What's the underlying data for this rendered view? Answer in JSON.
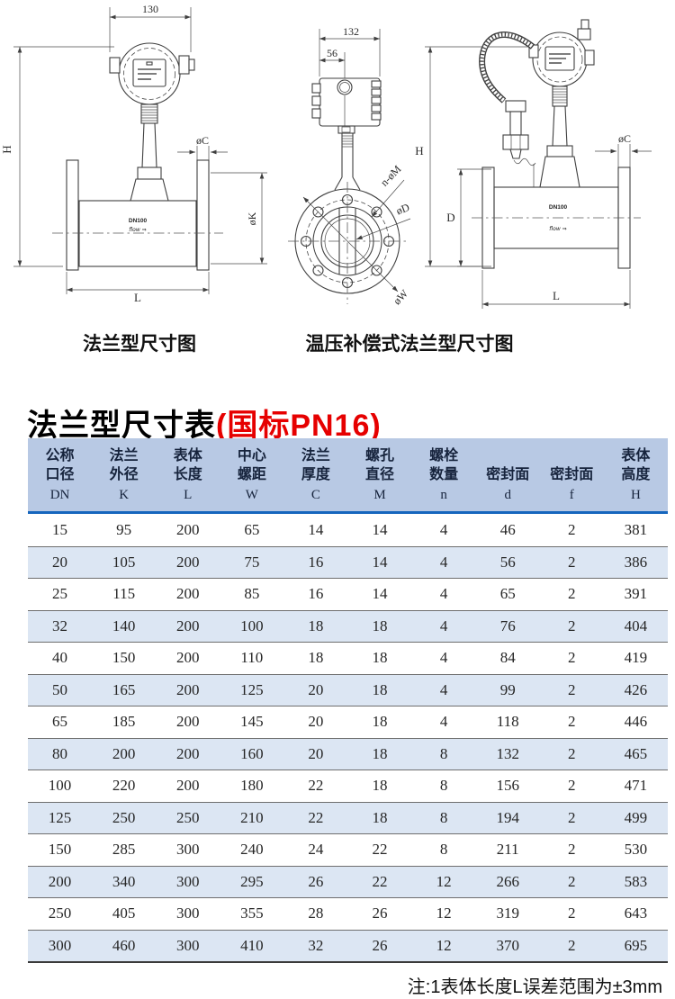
{
  "diagrams": {
    "left": {
      "caption": "法兰型尺寸图",
      "dim_width": "130",
      "dim_height": "H",
      "dim_flange_thickness": "øC",
      "dim_flange_od": "øK",
      "dim_length": "L",
      "body_label": "DN100",
      "flow_label": "flow ⇒"
    },
    "middle": {
      "dim_width": "132",
      "dim_half_width": "56",
      "dim_bolt_holes": "n-øM",
      "dim_bore_diameter": "øD",
      "dim_outer_diameter": "øW"
    },
    "right": {
      "caption": "温压补偿式法兰型尺寸图",
      "dim_height": "H",
      "dim_body_diameter": "D",
      "dim_flange_thickness": "øC",
      "dim_length": "L",
      "body_label": "DN100",
      "flow_label": "flow ⇒"
    }
  },
  "title": {
    "main": "法兰型尺寸表",
    "suffix": "(国标PN16)",
    "accent_color": "#e60000"
  },
  "table": {
    "header_bg": "#b8c9e4",
    "header_rule_color": "#1565bd",
    "stripe_color": "#dce6f3",
    "columns": [
      {
        "cn": "公称|口径",
        "sym": "DN"
      },
      {
        "cn": "法兰|外径",
        "sym": "K"
      },
      {
        "cn": "表体|长度",
        "sym": "L"
      },
      {
        "cn": "中心|螺距",
        "sym": "W"
      },
      {
        "cn": "法兰|厚度",
        "sym": "C"
      },
      {
        "cn": "螺孔|直径",
        "sym": "M"
      },
      {
        "cn": "螺栓|数量",
        "sym": "n"
      },
      {
        "cn": "密封面",
        "sym": "d"
      },
      {
        "cn": "密封面",
        "sym": "f"
      },
      {
        "cn": "表体|高度",
        "sym": "H"
      }
    ],
    "rows": [
      [
        15,
        95,
        200,
        65,
        14,
        14,
        4,
        46,
        2,
        381
      ],
      [
        20,
        105,
        200,
        75,
        16,
        14,
        4,
        56,
        2,
        386
      ],
      [
        25,
        115,
        200,
        85,
        16,
        14,
        4,
        65,
        2,
        391
      ],
      [
        32,
        140,
        200,
        100,
        18,
        18,
        4,
        76,
        2,
        404
      ],
      [
        40,
        150,
        200,
        110,
        18,
        18,
        4,
        84,
        2,
        419
      ],
      [
        50,
        165,
        200,
        125,
        20,
        18,
        4,
        99,
        2,
        426
      ],
      [
        65,
        185,
        200,
        145,
        20,
        18,
        4,
        118,
        2,
        446
      ],
      [
        80,
        200,
        200,
        160,
        20,
        18,
        8,
        132,
        2,
        465
      ],
      [
        100,
        220,
        200,
        180,
        22,
        18,
        8,
        156,
        2,
        471
      ],
      [
        125,
        250,
        250,
        210,
        22,
        18,
        8,
        194,
        2,
        499
      ],
      [
        150,
        285,
        300,
        240,
        24,
        22,
        8,
        211,
        2,
        530
      ],
      [
        200,
        340,
        300,
        295,
        26,
        22,
        12,
        266,
        2,
        583
      ],
      [
        250,
        405,
        300,
        355,
        28,
        26,
        12,
        319,
        2,
        643
      ],
      [
        300,
        460,
        300,
        410,
        32,
        26,
        12,
        370,
        2,
        695
      ]
    ]
  },
  "note": "注:1表体长度L误差范围为±3mm"
}
